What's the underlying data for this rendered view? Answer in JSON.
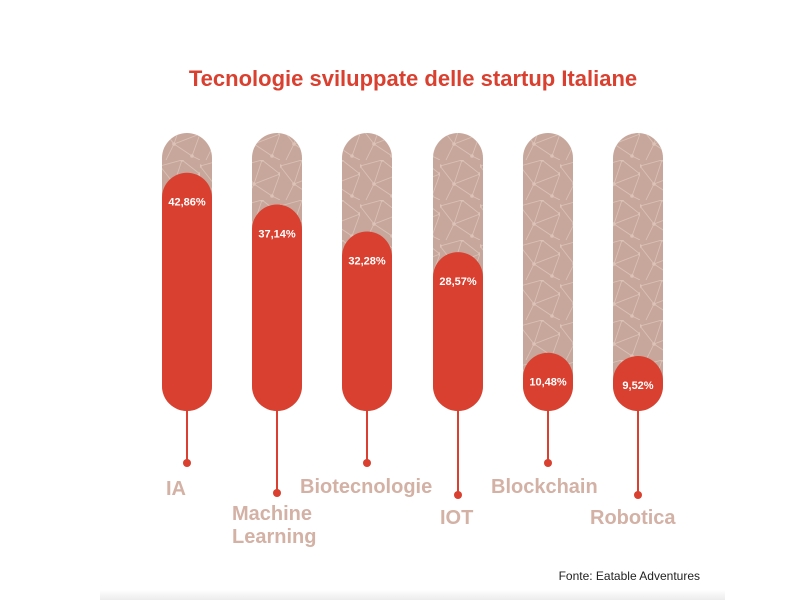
{
  "chart_data": {
    "type": "bar",
    "title": "Tecnologie sviluppate delle startup Italiane",
    "categories": [
      "IA",
      "Machine Learning",
      "Biotecnologie",
      "IOT",
      "Blockchain",
      "Robotica"
    ],
    "values": [
      42.86,
      37.14,
      32.28,
      28.57,
      10.48,
      9.52
    ],
    "value_labels": [
      "42,86%",
      "37,14%",
      "32,28%",
      "28,57%",
      "10,48%",
      "9,52%"
    ],
    "unit": "%",
    "xlabel": "",
    "ylabel": "",
    "grid": false,
    "legend": "none"
  },
  "source": "Fonte: Eatable Adventures",
  "colors": {
    "accent": "#d9402f",
    "track": "#c7a79c",
    "label": "#d3b1a5",
    "background": "#ffffff"
  }
}
